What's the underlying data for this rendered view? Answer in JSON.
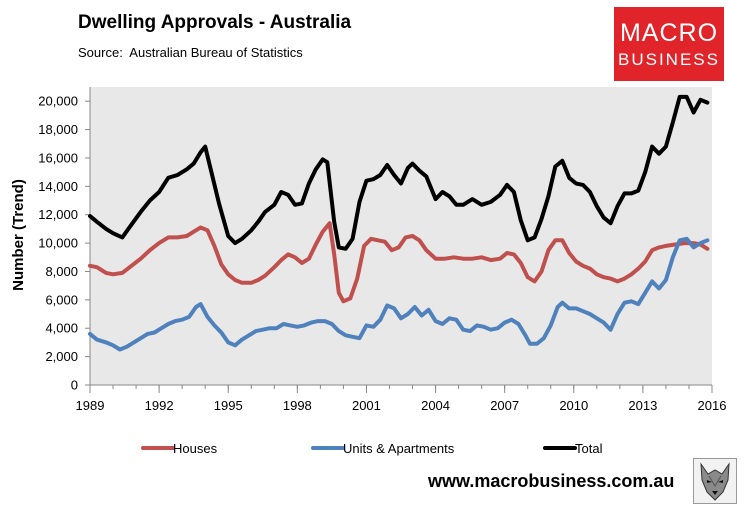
{
  "header": {
    "title": "Dwelling Approvals - Australia",
    "source": "Source:  Australian Bureau of Statistics"
  },
  "logo": {
    "line1": "MACRO",
    "line2": "BUSINESS",
    "color": "#e0242a"
  },
  "footer": {
    "url": "www.macrobusiness.com.au"
  },
  "chart_data": {
    "type": "line",
    "ylabel": "Number (Trend)",
    "xlabel": "",
    "ylim": [
      0,
      21000
    ],
    "xlim": [
      1989,
      2016
    ],
    "xticks": [
      "1989",
      "1992",
      "1995",
      "1998",
      "2001",
      "2004",
      "2007",
      "2010",
      "2013",
      "2016"
    ],
    "yticks": [
      "0",
      "2,000",
      "4,000",
      "6,000",
      "8,000",
      "10,000",
      "12,000",
      "14,000",
      "16,000",
      "18,000",
      "20,000"
    ],
    "plot_background": "#e8e8e8",
    "grid": false,
    "legend_position": "bottom",
    "series": [
      {
        "name": "Houses",
        "color": "#c0504d",
        "points": [
          [
            1989.0,
            8400
          ],
          [
            1989.3,
            8300
          ],
          [
            1989.7,
            7900
          ],
          [
            1990.0,
            7800
          ],
          [
            1990.4,
            7900
          ],
          [
            1990.8,
            8400
          ],
          [
            1991.2,
            8900
          ],
          [
            1991.6,
            9500
          ],
          [
            1992.0,
            10000
          ],
          [
            1992.4,
            10400
          ],
          [
            1992.8,
            10400
          ],
          [
            1993.2,
            10500
          ],
          [
            1993.5,
            10800
          ],
          [
            1993.8,
            11100
          ],
          [
            1994.1,
            10900
          ],
          [
            1994.4,
            9800
          ],
          [
            1994.7,
            8500
          ],
          [
            1995.0,
            7800
          ],
          [
            1995.3,
            7400
          ],
          [
            1995.6,
            7200
          ],
          [
            1996.0,
            7200
          ],
          [
            1996.3,
            7400
          ],
          [
            1996.6,
            7700
          ],
          [
            1997.0,
            8300
          ],
          [
            1997.3,
            8800
          ],
          [
            1997.6,
            9200
          ],
          [
            1997.9,
            9000
          ],
          [
            1998.2,
            8600
          ],
          [
            1998.5,
            8900
          ],
          [
            1998.8,
            9900
          ],
          [
            1999.1,
            10800
          ],
          [
            1999.4,
            11400
          ],
          [
            1999.6,
            9200
          ],
          [
            1999.8,
            6500
          ],
          [
            2000.0,
            5900
          ],
          [
            2000.3,
            6100
          ],
          [
            2000.6,
            7500
          ],
          [
            2000.9,
            9800
          ],
          [
            2001.2,
            10300
          ],
          [
            2001.5,
            10200
          ],
          [
            2001.8,
            10100
          ],
          [
            2002.1,
            9500
          ],
          [
            2002.4,
            9700
          ],
          [
            2002.7,
            10400
          ],
          [
            2003.0,
            10500
          ],
          [
            2003.3,
            10200
          ],
          [
            2003.6,
            9500
          ],
          [
            2004.0,
            8900
          ],
          [
            2004.4,
            8900
          ],
          [
            2004.8,
            9000
          ],
          [
            2005.2,
            8900
          ],
          [
            2005.6,
            8900
          ],
          [
            2006.0,
            9000
          ],
          [
            2006.4,
            8800
          ],
          [
            2006.8,
            8900
          ],
          [
            2007.1,
            9300
          ],
          [
            2007.4,
            9200
          ],
          [
            2007.7,
            8600
          ],
          [
            2008.0,
            7600
          ],
          [
            2008.3,
            7300
          ],
          [
            2008.6,
            8000
          ],
          [
            2008.9,
            9500
          ],
          [
            2009.2,
            10200
          ],
          [
            2009.5,
            10200
          ],
          [
            2009.8,
            9300
          ],
          [
            2010.1,
            8700
          ],
          [
            2010.4,
            8400
          ],
          [
            2010.7,
            8200
          ],
          [
            2011.0,
            7800
          ],
          [
            2011.3,
            7600
          ],
          [
            2011.6,
            7500
          ],
          [
            2011.9,
            7300
          ],
          [
            2012.2,
            7500
          ],
          [
            2012.5,
            7800
          ],
          [
            2012.8,
            8200
          ],
          [
            2013.1,
            8700
          ],
          [
            2013.4,
            9500
          ],
          [
            2013.7,
            9700
          ],
          [
            2014.0,
            9800
          ],
          [
            2014.4,
            9900
          ],
          [
            2014.8,
            10000
          ],
          [
            2015.2,
            10000
          ],
          [
            2015.5,
            9900
          ],
          [
            2015.8,
            9600
          ]
        ]
      },
      {
        "name": "Units & Apartments",
        "color": "#4f81bd",
        "points": [
          [
            1989.0,
            3600
          ],
          [
            1989.3,
            3200
          ],
          [
            1989.7,
            3000
          ],
          [
            1990.0,
            2800
          ],
          [
            1990.3,
            2500
          ],
          [
            1990.6,
            2700
          ],
          [
            1990.9,
            3000
          ],
          [
            1991.2,
            3300
          ],
          [
            1991.5,
            3600
          ],
          [
            1991.8,
            3700
          ],
          [
            1992.1,
            4000
          ],
          [
            1992.4,
            4300
          ],
          [
            1992.7,
            4500
          ],
          [
            1993.0,
            4600
          ],
          [
            1993.3,
            4800
          ],
          [
            1993.6,
            5500
          ],
          [
            1993.8,
            5700
          ],
          [
            1994.1,
            4800
          ],
          [
            1994.4,
            4200
          ],
          [
            1994.7,
            3700
          ],
          [
            1995.0,
            3000
          ],
          [
            1995.3,
            2800
          ],
          [
            1995.6,
            3200
          ],
          [
            1995.9,
            3500
          ],
          [
            1996.2,
            3800
          ],
          [
            1996.5,
            3900
          ],
          [
            1996.8,
            4000
          ],
          [
            1997.1,
            4000
          ],
          [
            1997.4,
            4300
          ],
          [
            1997.7,
            4200
          ],
          [
            1998.0,
            4100
          ],
          [
            1998.3,
            4200
          ],
          [
            1998.6,
            4400
          ],
          [
            1998.9,
            4500
          ],
          [
            1999.2,
            4500
          ],
          [
            1999.5,
            4300
          ],
          [
            1999.8,
            3800
          ],
          [
            2000.1,
            3500
          ],
          [
            2000.4,
            3400
          ],
          [
            2000.7,
            3300
          ],
          [
            2001.0,
            4200
          ],
          [
            2001.3,
            4100
          ],
          [
            2001.6,
            4600
          ],
          [
            2001.9,
            5600
          ],
          [
            2002.2,
            5400
          ],
          [
            2002.5,
            4700
          ],
          [
            2002.8,
            5000
          ],
          [
            2003.1,
            5500
          ],
          [
            2003.4,
            4900
          ],
          [
            2003.7,
            5300
          ],
          [
            2004.0,
            4500
          ],
          [
            2004.3,
            4300
          ],
          [
            2004.6,
            4700
          ],
          [
            2004.9,
            4600
          ],
          [
            2005.2,
            3900
          ],
          [
            2005.5,
            3800
          ],
          [
            2005.8,
            4200
          ],
          [
            2006.1,
            4100
          ],
          [
            2006.4,
            3900
          ],
          [
            2006.7,
            4000
          ],
          [
            2007.0,
            4400
          ],
          [
            2007.3,
            4600
          ],
          [
            2007.6,
            4300
          ],
          [
            2007.9,
            3500
          ],
          [
            2008.1,
            2900
          ],
          [
            2008.4,
            2900
          ],
          [
            2008.7,
            3300
          ],
          [
            2009.0,
            4200
          ],
          [
            2009.3,
            5500
          ],
          [
            2009.5,
            5800
          ],
          [
            2009.8,
            5400
          ],
          [
            2010.1,
            5400
          ],
          [
            2010.4,
            5200
          ],
          [
            2010.7,
            5000
          ],
          [
            2011.0,
            4700
          ],
          [
            2011.3,
            4400
          ],
          [
            2011.6,
            3900
          ],
          [
            2011.9,
            5000
          ],
          [
            2012.2,
            5800
          ],
          [
            2012.5,
            5900
          ],
          [
            2012.8,
            5700
          ],
          [
            2013.1,
            6500
          ],
          [
            2013.4,
            7300
          ],
          [
            2013.7,
            6800
          ],
          [
            2014.0,
            7400
          ],
          [
            2014.3,
            9000
          ],
          [
            2014.6,
            10200
          ],
          [
            2014.9,
            10300
          ],
          [
            2015.2,
            9700
          ],
          [
            2015.5,
            10000
          ],
          [
            2015.8,
            10200
          ]
        ]
      },
      {
        "name": "Total",
        "color": "#000000",
        "points": [
          [
            1989.0,
            11900
          ],
          [
            1989.3,
            11500
          ],
          [
            1989.7,
            11000
          ],
          [
            1990.0,
            10700
          ],
          [
            1990.4,
            10400
          ],
          [
            1990.8,
            11300
          ],
          [
            1991.2,
            12200
          ],
          [
            1991.6,
            13000
          ],
          [
            1992.0,
            13600
          ],
          [
            1992.4,
            14600
          ],
          [
            1992.8,
            14800
          ],
          [
            1993.2,
            15200
          ],
          [
            1993.5,
            15600
          ],
          [
            1993.8,
            16400
          ],
          [
            1994.0,
            16800
          ],
          [
            1994.3,
            14800
          ],
          [
            1994.6,
            12800
          ],
          [
            1995.0,
            10500
          ],
          [
            1995.3,
            10000
          ],
          [
            1995.6,
            10300
          ],
          [
            1996.0,
            10900
          ],
          [
            1996.3,
            11500
          ],
          [
            1996.6,
            12200
          ],
          [
            1997.0,
            12700
          ],
          [
            1997.3,
            13600
          ],
          [
            1997.6,
            13400
          ],
          [
            1997.9,
            12700
          ],
          [
            1998.2,
            12800
          ],
          [
            1998.5,
            14200
          ],
          [
            1998.8,
            15200
          ],
          [
            1999.1,
            15900
          ],
          [
            1999.3,
            15700
          ],
          [
            1999.6,
            11500
          ],
          [
            1999.8,
            9700
          ],
          [
            2000.1,
            9600
          ],
          [
            2000.4,
            10300
          ],
          [
            2000.7,
            12900
          ],
          [
            2001.0,
            14400
          ],
          [
            2001.3,
            14500
          ],
          [
            2001.6,
            14800
          ],
          [
            2001.9,
            15500
          ],
          [
            2002.2,
            14800
          ],
          [
            2002.5,
            14200
          ],
          [
            2002.8,
            15300
          ],
          [
            2003.0,
            15600
          ],
          [
            2003.3,
            15100
          ],
          [
            2003.6,
            14700
          ],
          [
            2004.0,
            13100
          ],
          [
            2004.3,
            13600
          ],
          [
            2004.6,
            13300
          ],
          [
            2004.9,
            12700
          ],
          [
            2005.2,
            12700
          ],
          [
            2005.6,
            13100
          ],
          [
            2006.0,
            12700
          ],
          [
            2006.4,
            12900
          ],
          [
            2006.8,
            13400
          ],
          [
            2007.1,
            14100
          ],
          [
            2007.4,
            13600
          ],
          [
            2007.7,
            11600
          ],
          [
            2008.0,
            10200
          ],
          [
            2008.3,
            10400
          ],
          [
            2008.6,
            11700
          ],
          [
            2008.9,
            13300
          ],
          [
            2009.2,
            15400
          ],
          [
            2009.5,
            15800
          ],
          [
            2009.8,
            14600
          ],
          [
            2010.1,
            14200
          ],
          [
            2010.4,
            14100
          ],
          [
            2010.7,
            13600
          ],
          [
            2011.0,
            12600
          ],
          [
            2011.3,
            11800
          ],
          [
            2011.6,
            11400
          ],
          [
            2011.9,
            12600
          ],
          [
            2012.2,
            13500
          ],
          [
            2012.5,
            13500
          ],
          [
            2012.8,
            13700
          ],
          [
            2013.1,
            15000
          ],
          [
            2013.4,
            16800
          ],
          [
            2013.7,
            16300
          ],
          [
            2014.0,
            16800
          ],
          [
            2014.3,
            18500
          ],
          [
            2014.6,
            20300
          ],
          [
            2014.9,
            20300
          ],
          [
            2015.2,
            19200
          ],
          [
            2015.5,
            20100
          ],
          [
            2015.8,
            19900
          ]
        ]
      }
    ]
  }
}
